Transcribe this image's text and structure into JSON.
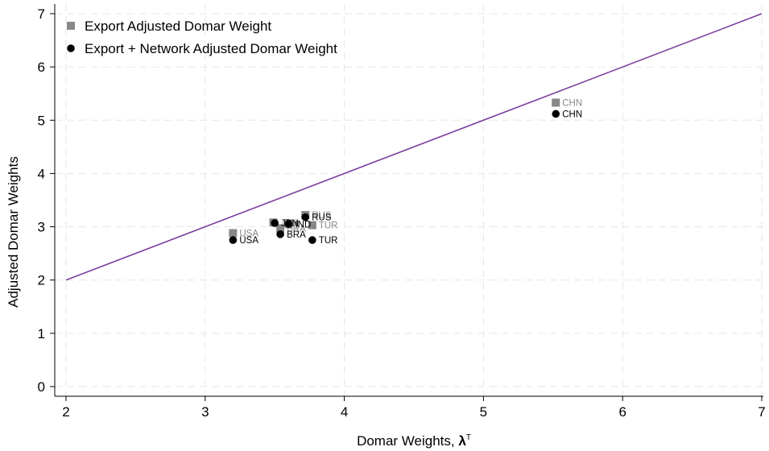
{
  "chart_data": {
    "type": "scatter",
    "title": "",
    "xlabel": "Domar Weights, ",
    "xlabel_symbol": "λ",
    "xlabel_superscript": "T",
    "ylabel": "Adjusted Domar Weights",
    "xlim": [
      2,
      7
    ],
    "ylim": [
      0,
      7
    ],
    "xticks": [
      2,
      3,
      4,
      5,
      6,
      7
    ],
    "yticks": [
      0,
      1,
      2,
      3,
      4,
      5,
      6,
      7
    ],
    "grid": true,
    "legend_position": "top-left",
    "reference_line": {
      "x": [
        2,
        7
      ],
      "y": [
        2,
        7
      ],
      "color": "#7b3f9e"
    },
    "series": [
      {
        "name": "Export Adjusted Domar Weight",
        "marker": "square",
        "color": "#888888",
        "points": [
          {
            "label": "CHN",
            "x": 5.52,
            "y": 5.33
          },
          {
            "label": "USA",
            "x": 3.2,
            "y": 2.88
          },
          {
            "label": "RUS",
            "x": 3.72,
            "y": 3.22
          },
          {
            "label": "TUR",
            "x": 3.77,
            "y": 3.03
          },
          {
            "label": "BRA",
            "x": 3.54,
            "y": 2.97
          },
          {
            "label": "IND",
            "x": 3.6,
            "y": 3.05
          },
          {
            "label": "JPN",
            "x": 3.49,
            "y": 3.08
          }
        ]
      },
      {
        "name": "Export + Network Adjusted Domar Weight",
        "marker": "circle",
        "color": "#000000",
        "points": [
          {
            "label": "CHN",
            "x": 5.52,
            "y": 5.12
          },
          {
            "label": "USA",
            "x": 3.2,
            "y": 2.75
          },
          {
            "label": "RUS",
            "x": 3.72,
            "y": 3.18
          },
          {
            "label": "TUR",
            "x": 3.77,
            "y": 2.75
          },
          {
            "label": "BRA",
            "x": 3.54,
            "y": 2.86
          },
          {
            "label": "IND",
            "x": 3.6,
            "y": 3.05
          },
          {
            "label": "JPN",
            "x": 3.5,
            "y": 3.07
          }
        ]
      }
    ]
  }
}
